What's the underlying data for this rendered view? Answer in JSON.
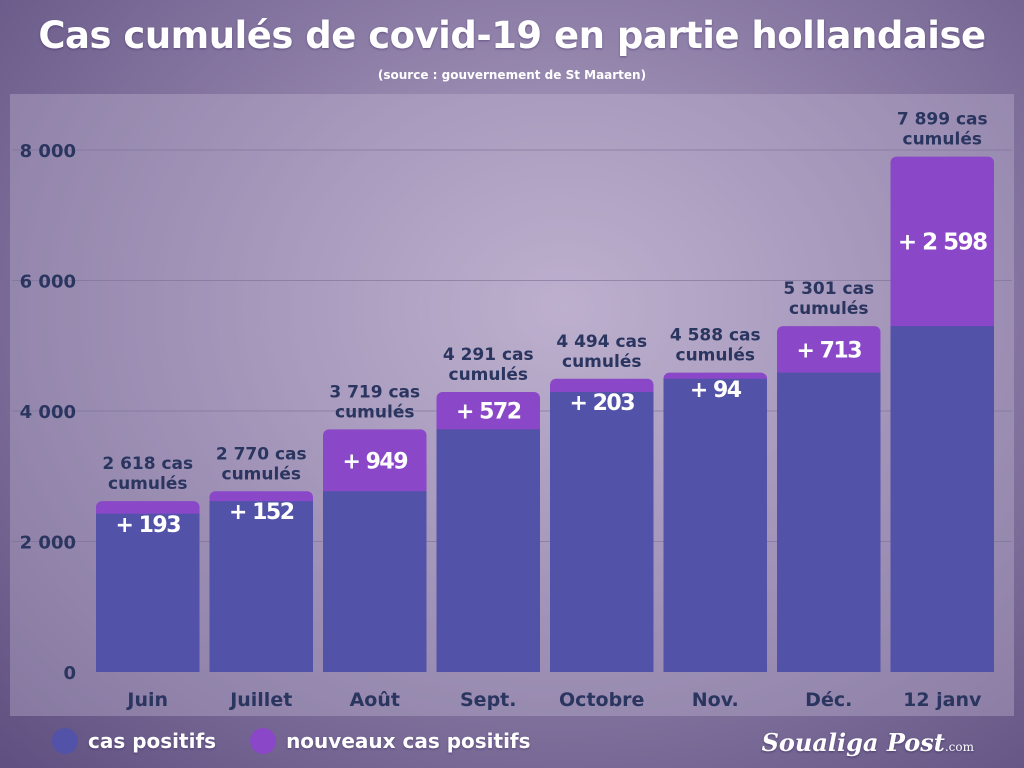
{
  "header": {
    "title": "Cas cumulés de covid-19 en partie hollandaise",
    "subtitle": "(source : gouvernement de St Maarten)"
  },
  "legend": {
    "items": [
      {
        "label": "cas positifs",
        "color": "#5152a8"
      },
      {
        "label": "nouveaux cas positifs",
        "color": "#8a48c8"
      }
    ]
  },
  "brand": {
    "name": "Soualiga Post",
    "suffix": ".com"
  },
  "colors": {
    "base": "#5152a8",
    "increment": "#8a48c8",
    "label_text": "#2a3560",
    "tick_text": "#2a3560",
    "gridline": "#7a6f95"
  },
  "chart_data": {
    "type": "bar",
    "stacked": true,
    "title": "Cas cumulés de covid-19 en partie hollandaise",
    "subtitle": "(source : gouvernement de St Maarten)",
    "categories": [
      "Juin",
      "Juillet",
      "Août",
      "Sept.",
      "Octobre",
      "Nov.",
      "Déc.",
      "12 janv"
    ],
    "series": [
      {
        "name": "cas positifs",
        "values": [
          2425,
          2618,
          2770,
          3719,
          4291,
          4494,
          4588,
          5301
        ]
      },
      {
        "name": "nouveaux cas positifs",
        "values": [
          193,
          152,
          949,
          572,
          203,
          94,
          713,
          2598
        ]
      }
    ],
    "increment_labels": [
      "+ 193",
      "+ 152",
      "+ 949",
      "+ 572",
      "+ 203",
      "+ 94",
      "+ 713",
      "+ 2 598"
    ],
    "total_labels": [
      [
        "2 618 cas",
        "cumulés"
      ],
      [
        "2 770 cas",
        "cumulés"
      ],
      [
        "3  719 cas",
        "cumulés"
      ],
      [
        "4 291 cas",
        "cumulés"
      ],
      [
        "4 494 cas",
        "cumulés"
      ],
      [
        "4 588 cas",
        "cumulés"
      ],
      [
        "5 301 cas",
        "cumulés"
      ],
      [
        "7 899 cas",
        "cumulés"
      ]
    ],
    "y_ticks": [
      0,
      2000,
      4000,
      6000,
      8000
    ],
    "y_tick_labels": [
      "0",
      "2 000",
      "4 000",
      "6 000",
      "8 000"
    ],
    "ylim": [
      0,
      8800
    ],
    "grid": true,
    "legend_position": "bottom-left"
  }
}
